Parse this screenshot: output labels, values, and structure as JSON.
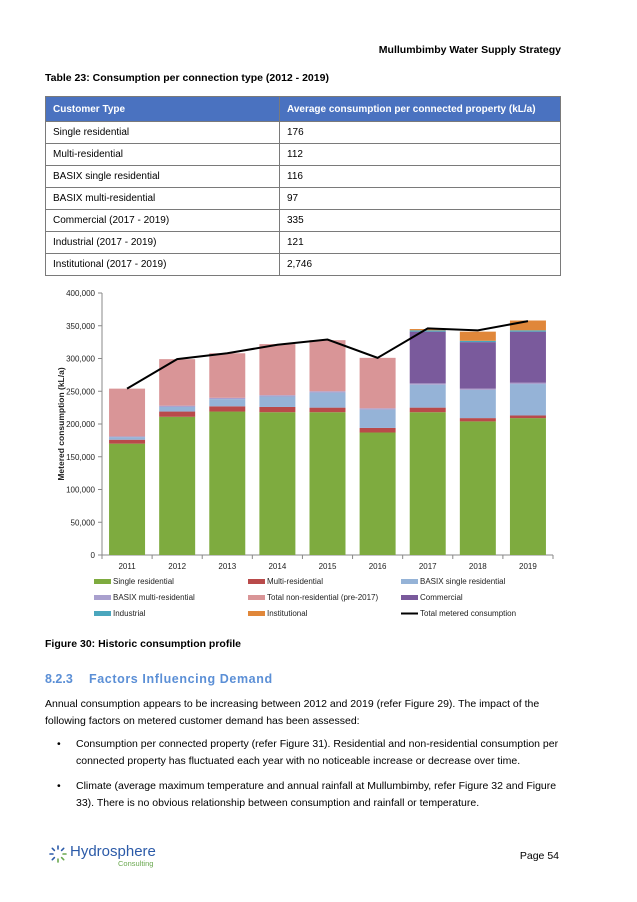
{
  "header": {
    "title": "Mullumbimby Water Supply Strategy"
  },
  "table": {
    "caption": "Table 23: Consumption per connection type (2012 - 2019)",
    "headers": [
      "Customer Type",
      "Average consumption per connected property (kL/a)"
    ],
    "rows": [
      [
        "Single residential",
        "176"
      ],
      [
        "Multi-residential",
        "112"
      ],
      [
        "BASIX single residential",
        "116"
      ],
      [
        "BASIX multi-residential",
        "97"
      ],
      [
        "Commercial (2017 - 2019)",
        "335"
      ],
      [
        "Industrial (2017 - 2019)",
        "121"
      ],
      [
        "Institutional (2017 - 2019)",
        "2,746"
      ]
    ]
  },
  "chart_data": {
    "type": "bar",
    "stacked": true,
    "categories": [
      "2011",
      "2012",
      "2013",
      "2014",
      "2015",
      "2016",
      "2017",
      "2018",
      "2019"
    ],
    "ylabel": "Metered consumption (kL/a)",
    "ylim": [
      0,
      400000
    ],
    "yticks": [
      0,
      50000,
      100000,
      150000,
      200000,
      250000,
      300000,
      350000,
      400000
    ],
    "ytick_labels": [
      "0",
      "50,000",
      "100,000",
      "150,000",
      "200,000",
      "250,000",
      "300,000",
      "350,000",
      "400,000"
    ],
    "grid": false,
    "legend_position": "bottom",
    "series": [
      {
        "name": "Single residential",
        "color": "#7eab3f",
        "values": [
          170000,
          211000,
          219000,
          218000,
          218000,
          187000,
          218000,
          204000,
          209000
        ]
      },
      {
        "name": "Multi-residential",
        "color": "#b94a4a",
        "values": [
          6000,
          8000,
          8000,
          8000,
          7000,
          7000,
          7000,
          5000,
          4000
        ]
      },
      {
        "name": "BASIX single residential",
        "color": "#95b3d7",
        "values": [
          4000,
          7000,
          11000,
          16000,
          23000,
          28000,
          35000,
          43000,
          48000
        ]
      },
      {
        "name": "BASIX multi-residential",
        "color": "#a9a0ce",
        "values": [
          1000,
          2000,
          2000,
          2000,
          2000,
          2000,
          2000,
          2000,
          2000
        ]
      },
      {
        "name": "Total non-residential (pre-2017)",
        "color": "#d99597",
        "values": [
          73000,
          71000,
          68000,
          78000,
          78000,
          77000,
          0,
          0,
          0
        ]
      },
      {
        "name": "Commercial",
        "color": "#7a5a9c",
        "values": [
          0,
          0,
          0,
          0,
          0,
          0,
          79000,
          71000,
          78000
        ]
      },
      {
        "name": "Industrial",
        "color": "#4aa6bd",
        "values": [
          0,
          0,
          0,
          0,
          0,
          0,
          2000,
          2000,
          2000
        ]
      },
      {
        "name": "Institutional",
        "color": "#e0873a",
        "values": [
          0,
          0,
          0,
          0,
          0,
          0,
          2000,
          14000,
          15000
        ]
      }
    ],
    "line_series": {
      "name": "Total metered consumption",
      "color": "#000000",
      "values": [
        254000,
        299000,
        308000,
        321000,
        329000,
        301000,
        346000,
        343000,
        357000
      ]
    }
  },
  "figure": {
    "caption": "Figure 30: Historic consumption profile"
  },
  "section": {
    "number": "8.2.3",
    "title": "Factors Influencing Demand",
    "paragraph": "Annual consumption appears to be increasing between 2012 and 2019 (refer Figure 29). The impact of the following factors on metered customer demand has been assessed:",
    "bullets": [
      "Consumption per connected property (refer Figure 31). Residential and non-residential consumption per connected property has fluctuated each year with no noticeable increase or decrease over time.",
      "Climate (average maximum temperature and annual rainfall at Mullumbimby, refer Figure 32 and Figure 33). There is no obvious relationship between consumption and rainfall or temperature."
    ]
  },
  "footer": {
    "logo_main": "Hydrosphere",
    "logo_sub": "Consulting",
    "page": "Page 54"
  }
}
